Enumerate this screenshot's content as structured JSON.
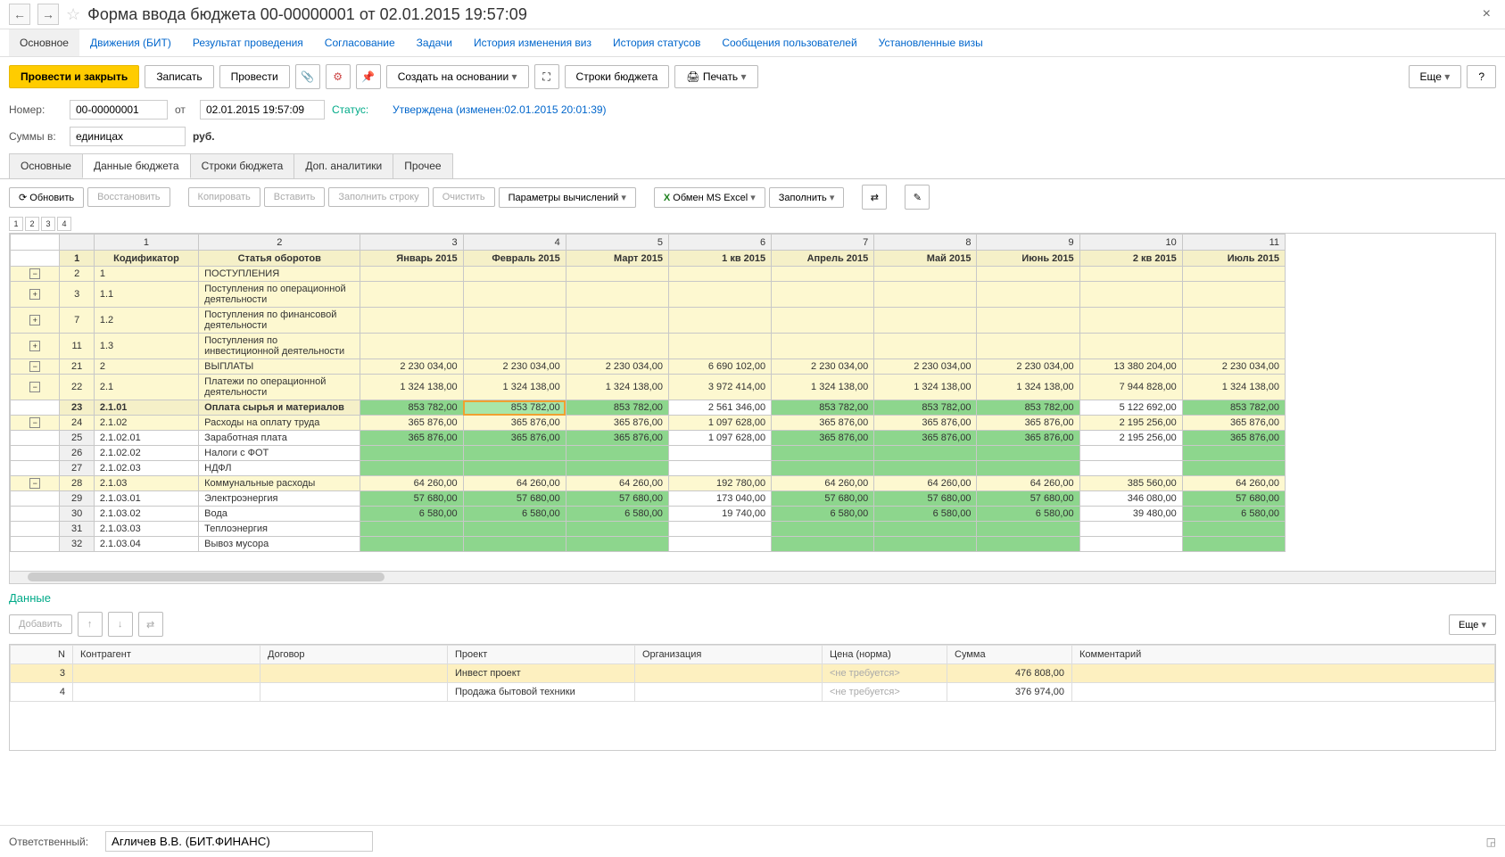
{
  "title": "Форма ввода бюджета 00-00000001 от 02.01.2015 19:57:09",
  "nav_tabs": [
    "Основное",
    "Движения (БИТ)",
    "Результат проведения",
    "Согласование",
    "Задачи",
    "История изменения виз",
    "История статусов",
    "Сообщения пользователей",
    "Установленные визы"
  ],
  "toolbar": {
    "primary": "Провести и закрыть",
    "save": "Записать",
    "post": "Провести",
    "create_based": "Создать на основании",
    "lines": "Строки бюджета",
    "print": "Печать",
    "more": "Еще",
    "help": "?"
  },
  "form": {
    "number_label": "Номер:",
    "number": "00-00000001",
    "from_label": "от",
    "date": "02.01.2015 19:57:09",
    "status_label": "Статус:",
    "status_text": "Утверждена (изменен:02.01.2015 20:01:39)",
    "sums_label": "Суммы в:",
    "sums_value": "единицах",
    "currency": "руб."
  },
  "sub_tabs": [
    "Основные",
    "Данные бюджета",
    "Строки бюджета",
    "Доп. аналитики",
    "Прочее"
  ],
  "sub_toolbar": {
    "refresh": "Обновить",
    "restore": "Восстановить",
    "copy": "Копировать",
    "paste": "Вставить",
    "fill_row": "Заполнить строку",
    "clear": "Очистить",
    "calc_params": "Параметры вычислений",
    "excel": "Обмен MS Excel",
    "fill": "Заполнить"
  },
  "grid": {
    "col_nums": [
      "1",
      "2",
      "3",
      "4",
      "5",
      "6",
      "7",
      "8",
      "9",
      "10",
      "11"
    ],
    "headers": [
      "Кодификатор",
      "Статья оборотов",
      "Январь 2015",
      "Февраль 2015",
      "Март 2015",
      "1 кв 2015",
      "Апрель 2015",
      "Май 2015",
      "Июнь 2015",
      "2 кв 2015",
      "Июль 2015"
    ],
    "rows": [
      {
        "n": "2",
        "code": "1",
        "name": "ПОСТУПЛЕНИЯ",
        "y": true,
        "tree": "minus"
      },
      {
        "n": "3",
        "code": "1.1",
        "name": "Поступления по операционной деятельности",
        "y": true,
        "tree": "plus"
      },
      {
        "n": "7",
        "code": "1.2",
        "name": "Поступления по финансовой деятельности",
        "y": true,
        "tree": "plus"
      },
      {
        "n": "11",
        "code": "1.3",
        "name": "Поступления по инвестиционной деятельности",
        "y": true,
        "tree": "plus"
      },
      {
        "n": "21",
        "code": "2",
        "name": "ВЫПЛАТЫ",
        "y": true,
        "tree": "minus",
        "d": [
          "2 230 034,00",
          "2 230 034,00",
          "2 230 034,00",
          "6 690 102,00",
          "2 230 034,00",
          "2 230 034,00",
          "2 230 034,00",
          "13 380 204,00",
          "2 230 034,00"
        ]
      },
      {
        "n": "22",
        "code": "2.1",
        "name": "Платежи по операционной деятельности",
        "y": true,
        "tree": "minus",
        "d": [
          "1 324 138,00",
          "1 324 138,00",
          "1 324 138,00",
          "3 972 414,00",
          "1 324 138,00",
          "1 324 138,00",
          "1 324 138,00",
          "7 944 828,00",
          "1 324 138,00"
        ]
      },
      {
        "n": "23",
        "code": "2.1.01",
        "name": "Оплата сырья и материалов",
        "sel": true,
        "d": [
          "853 782,00",
          "853 782,00",
          "853 782,00",
          "2 561 346,00",
          "853 782,00",
          "853 782,00",
          "853 782,00",
          "5 122 692,00",
          "853 782,00"
        ],
        "g": [
          0,
          1,
          2,
          4,
          5,
          6,
          8
        ],
        "selcell": 1
      },
      {
        "n": "24",
        "code": "2.1.02",
        "name": "Расходы на оплату труда",
        "y": true,
        "tree": "minus",
        "d": [
          "365 876,00",
          "365 876,00",
          "365 876,00",
          "1 097 628,00",
          "365 876,00",
          "365 876,00",
          "365 876,00",
          "2 195 256,00",
          "365 876,00"
        ]
      },
      {
        "n": "25",
        "code": "2.1.02.01",
        "name": "Заработная плата",
        "d": [
          "365 876,00",
          "365 876,00",
          "365 876,00",
          "1 097 628,00",
          "365 876,00",
          "365 876,00",
          "365 876,00",
          "2 195 256,00",
          "365 876,00"
        ],
        "g": [
          0,
          1,
          2,
          4,
          5,
          6,
          8
        ]
      },
      {
        "n": "26",
        "code": "2.1.02.02",
        "name": "Налоги с ФОТ",
        "d": [
          "",
          "",
          "",
          "",
          "",
          "",
          "",
          "",
          ""
        ],
        "g": [
          0,
          1,
          2,
          4,
          5,
          6,
          8
        ]
      },
      {
        "n": "27",
        "code": "2.1.02.03",
        "name": "НДФЛ",
        "d": [
          "",
          "",
          "",
          "",
          "",
          "",
          "",
          "",
          ""
        ],
        "g": [
          0,
          1,
          2,
          4,
          5,
          6,
          8
        ]
      },
      {
        "n": "28",
        "code": "2.1.03",
        "name": "Коммунальные расходы",
        "y": true,
        "tree": "minus",
        "d": [
          "64 260,00",
          "64 260,00",
          "64 260,00",
          "192 780,00",
          "64 260,00",
          "64 260,00",
          "64 260,00",
          "385 560,00",
          "64 260,00"
        ]
      },
      {
        "n": "29",
        "code": "2.1.03.01",
        "name": "Электроэнергия",
        "d": [
          "57 680,00",
          "57 680,00",
          "57 680,00",
          "173 040,00",
          "57 680,00",
          "57 680,00",
          "57 680,00",
          "346 080,00",
          "57 680,00"
        ],
        "g": [
          0,
          1,
          2,
          4,
          5,
          6,
          8
        ]
      },
      {
        "n": "30",
        "code": "2.1.03.02",
        "name": "Вода",
        "d": [
          "6 580,00",
          "6 580,00",
          "6 580,00",
          "19 740,00",
          "6 580,00",
          "6 580,00",
          "6 580,00",
          "39 480,00",
          "6 580,00"
        ],
        "g": [
          0,
          1,
          2,
          4,
          5,
          6,
          8
        ]
      },
      {
        "n": "31",
        "code": "2.1.03.03",
        "name": "Теплоэнергия",
        "d": [
          "",
          "",
          "",
          "",
          "",
          "",
          "",
          "",
          ""
        ],
        "g": [
          0,
          1,
          2,
          4,
          5,
          6,
          8
        ]
      },
      {
        "n": "32",
        "code": "2.1.03.04",
        "name": "Вывоз мусора",
        "d": [
          "",
          "",
          "",
          "",
          "",
          "",
          "",
          "",
          ""
        ],
        "g": [
          0,
          1,
          2,
          4,
          5,
          6,
          8
        ]
      }
    ]
  },
  "data_section": {
    "title": "Данные",
    "add": "Добавить",
    "more": "Еще",
    "headers": [
      "N",
      "Контрагент",
      "Договор",
      "Проект",
      "Организация",
      "Цена (норма)",
      "Сумма",
      "Комментарий"
    ],
    "rows": [
      {
        "n": "3",
        "project": "Инвест проект",
        "price": "<не требуется>",
        "sum": "476 808,00",
        "hl": true
      },
      {
        "n": "4",
        "project": "Продажа бытовой техники",
        "price": "<не требуется>",
        "sum": "376 974,00"
      }
    ]
  },
  "footer": {
    "resp_label": "Ответственный:",
    "resp_value": "Агличев В.В. (БИТ.ФИНАНС)"
  }
}
